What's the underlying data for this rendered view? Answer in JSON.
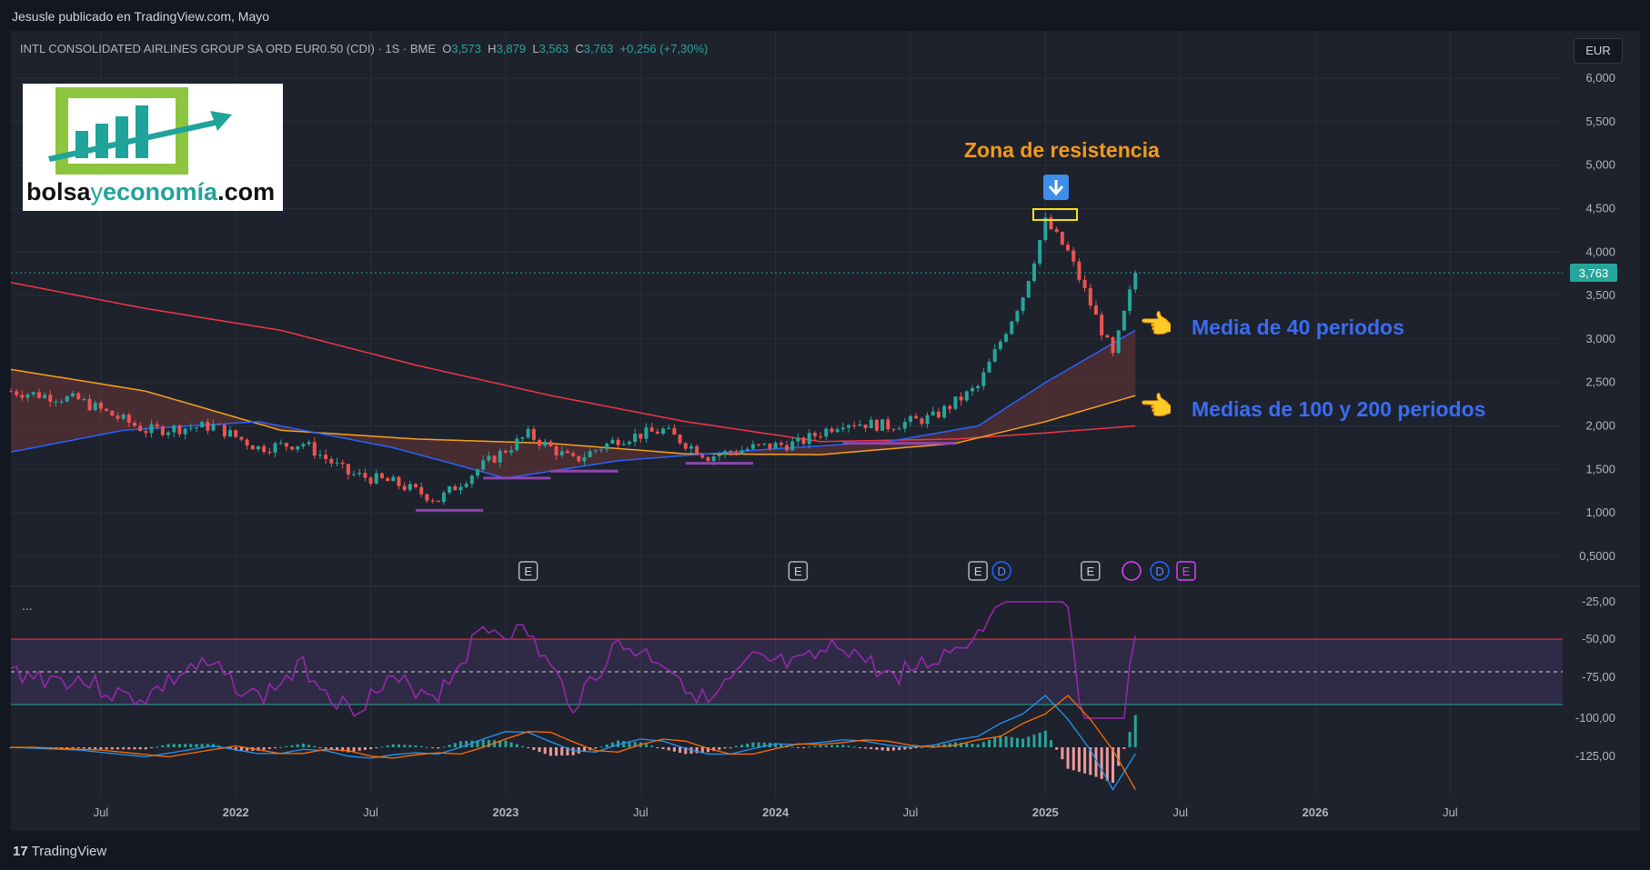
{
  "header": {
    "published": "Jesusle publicado en TradingView.com, Mayo",
    "currency": "EUR"
  },
  "legend": {
    "symbol": "INTL CONSOLIDATED AIRLINES GROUP SA ORD EUR0.50 (CDI) · 1S · BME",
    "o_label": "O",
    "o": "3,573",
    "h_label": "H",
    "h": "3,879",
    "l_label": "L",
    "l": "3,563",
    "c_label": "C",
    "c": "3,763",
    "change": "+0,256 (+7,30%)"
  },
  "logo": {
    "part1": "bolsa",
    "part2": "y",
    "part3": "economía",
    "part4": ".com"
  },
  "annotations": {
    "resistance": "Zona de resistencia",
    "ma40": "Media de 40 periodos",
    "ma100_200": "Medias de 100 y 200 periodos"
  },
  "footer": {
    "brand": "TradingView",
    "brand_mark": "17"
  },
  "pane_menu": "...",
  "colors": {
    "up": "#26a69a",
    "down": "#ef5350",
    "ma40": "#2962ff",
    "ma100": "#f7a21b",
    "ma200": "#f23645",
    "rsi": "#9c27b0",
    "macd": "#2196f3",
    "signal": "#ff6d00"
  },
  "chart_data": {
    "type": "candlestick",
    "price_axis": {
      "ylim": [
        0.25,
        6.25
      ],
      "ticks": [
        "6,000",
        "5,500",
        "5,000",
        "4,500",
        "4,000",
        "3,500",
        "3,000",
        "2,500",
        "2,000",
        "1,500",
        "1,000",
        "0,5000"
      ],
      "current_price": "3,763"
    },
    "oscillator_axis": {
      "ticks": [
        "-25,00",
        "-50,00",
        "-75,00",
        "-100,00",
        "-125,00"
      ]
    },
    "x_axis": {
      "ticks": [
        "Jul",
        "2022",
        "Jul",
        "2023",
        "Jul",
        "2024",
        "Jul",
        "2025",
        "Jul",
        "2026",
        "Jul"
      ],
      "range": [
        "2021-03",
        "2026-12"
      ]
    },
    "close_series": [
      {
        "x": "2021-03",
        "y": 2.4
      },
      {
        "x": "2021-06",
        "y": 2.3
      },
      {
        "x": "2021-09",
        "y": 1.95
      },
      {
        "x": "2021-12",
        "y": 2.0
      },
      {
        "x": "2022-02",
        "y": 1.75
      },
      {
        "x": "2022-04",
        "y": 1.8
      },
      {
        "x": "2022-06",
        "y": 1.45
      },
      {
        "x": "2022-08",
        "y": 1.35
      },
      {
        "x": "2022-10",
        "y": 1.15
      },
      {
        "x": "2022-12",
        "y": 1.55
      },
      {
        "x": "2023-02",
        "y": 1.9
      },
      {
        "x": "2023-04",
        "y": 1.6
      },
      {
        "x": "2023-06",
        "y": 1.85
      },
      {
        "x": "2023-08",
        "y": 1.95
      },
      {
        "x": "2023-10",
        "y": 1.65
      },
      {
        "x": "2023-12",
        "y": 1.75
      },
      {
        "x": "2024-02",
        "y": 1.8
      },
      {
        "x": "2024-04",
        "y": 2.05
      },
      {
        "x": "2024-06",
        "y": 2.0
      },
      {
        "x": "2024-08",
        "y": 2.1
      },
      {
        "x": "2024-10",
        "y": 2.45
      },
      {
        "x": "2024-12",
        "y": 3.5
      },
      {
        "x": "2025-01",
        "y": 4.35
      },
      {
        "x": "2025-02",
        "y": 4.0
      },
      {
        "x": "2025-03",
        "y": 3.4
      },
      {
        "x": "2025-04",
        "y": 2.8
      },
      {
        "x": "2025-05",
        "y": 3.763
      }
    ],
    "series": [
      {
        "name": "Media de 40 periodos",
        "values": [
          {
            "x": "2021-03",
            "y": 1.7
          },
          {
            "x": "2021-08",
            "y": 1.95
          },
          {
            "x": "2022-02",
            "y": 2.05
          },
          {
            "x": "2022-08",
            "y": 1.75
          },
          {
            "x": "2023-01",
            "y": 1.4
          },
          {
            "x": "2023-06",
            "y": 1.6
          },
          {
            "x": "2023-12",
            "y": 1.72
          },
          {
            "x": "2024-06",
            "y": 1.82
          },
          {
            "x": "2024-10",
            "y": 2.0
          },
          {
            "x": "2025-01",
            "y": 2.5
          },
          {
            "x": "2025-05",
            "y": 3.1
          }
        ]
      },
      {
        "name": "Media de 100 periodos",
        "values": [
          {
            "x": "2021-03",
            "y": 2.65
          },
          {
            "x": "2021-09",
            "y": 2.4
          },
          {
            "x": "2022-03",
            "y": 1.95
          },
          {
            "x": "2022-09",
            "y": 1.85
          },
          {
            "x": "2023-03",
            "y": 1.8
          },
          {
            "x": "2023-09",
            "y": 1.68
          },
          {
            "x": "2024-03",
            "y": 1.67
          },
          {
            "x": "2024-09",
            "y": 1.8
          },
          {
            "x": "2025-01",
            "y": 2.05
          },
          {
            "x": "2025-05",
            "y": 2.35
          }
        ]
      },
      {
        "name": "Media de 200 periodos",
        "values": [
          {
            "x": "2021-03",
            "y": 3.65
          },
          {
            "x": "2021-09",
            "y": 3.35
          },
          {
            "x": "2022-03",
            "y": 3.1
          },
          {
            "x": "2022-09",
            "y": 2.7
          },
          {
            "x": "2023-03",
            "y": 2.35
          },
          {
            "x": "2023-09",
            "y": 2.05
          },
          {
            "x": "2024-03",
            "y": 1.82
          },
          {
            "x": "2024-09",
            "y": 1.85
          },
          {
            "x": "2025-01",
            "y": 1.92
          },
          {
            "x": "2025-05",
            "y": 2.0
          }
        ]
      }
    ],
    "earnings_markers": [
      {
        "x": "2023-02",
        "label": "E"
      },
      {
        "x": "2024-02",
        "label": "E"
      },
      {
        "x": "2024-10",
        "label": "E"
      },
      {
        "x": "2024-10",
        "label": "D"
      },
      {
        "x": "2025-03",
        "label": "E"
      },
      {
        "x": "2025-06",
        "label": "D"
      },
      {
        "x": "2025-07",
        "label": "E"
      }
    ]
  }
}
